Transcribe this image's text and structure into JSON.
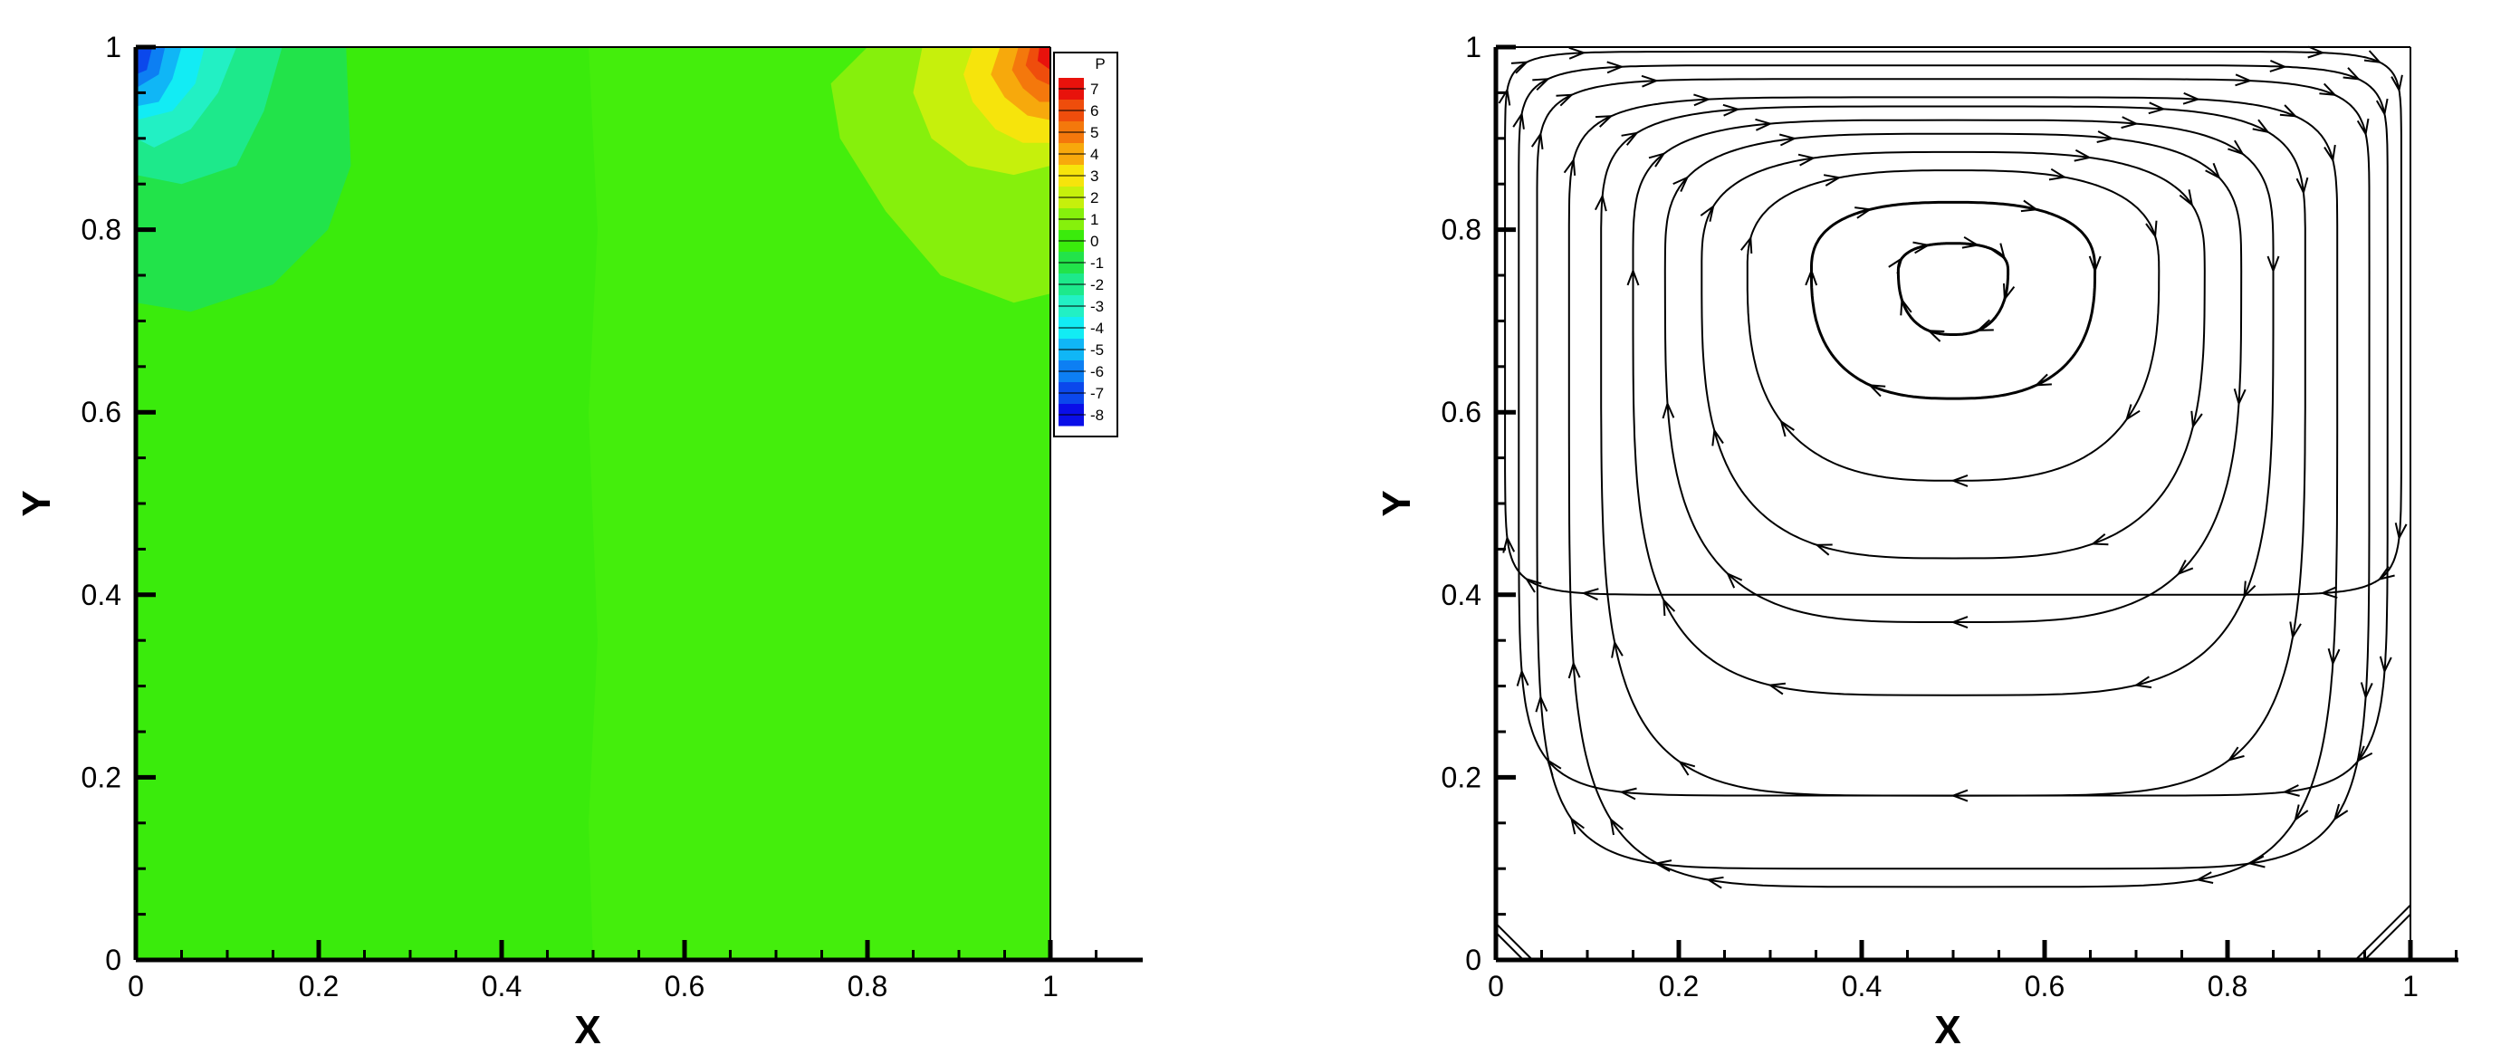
{
  "chart_data": [
    {
      "type": "heatmap",
      "xlabel": "X",
      "ylabel": "Y",
      "xlim": [
        0,
        1
      ],
      "ylim": [
        0,
        1
      ],
      "xticks": [
        "0",
        "0.2",
        "0.4",
        "0.6",
        "0.8",
        "1"
      ],
      "yticks": [
        "0",
        "0.2",
        "0.4",
        "0.6",
        "0.8",
        "1"
      ],
      "grid": false,
      "background_color": "#3aeb0c",
      "legend": {
        "title": "P",
        "placement": "top-right",
        "levels": [
          {
            "label": "7",
            "color": "#e8120c"
          },
          {
            "label": "6",
            "color": "#ef4d0c"
          },
          {
            "label": "5",
            "color": "#f4780c"
          },
          {
            "label": "4",
            "color": "#f7a90c"
          },
          {
            "label": "3",
            "color": "#f6e40c"
          },
          {
            "label": "2",
            "color": "#c6f00c"
          },
          {
            "label": "1",
            "color": "#86f00c"
          },
          {
            "label": "0",
            "color": "#3aeb0c"
          },
          {
            "label": "-1",
            "color": "#22e34a"
          },
          {
            "label": "-2",
            "color": "#1de98b"
          },
          {
            "label": "-3",
            "color": "#22f0c4"
          },
          {
            "label": "-4",
            "color": "#12ecf4"
          },
          {
            "label": "-5",
            "color": "#10b6f6"
          },
          {
            "label": "-6",
            "color": "#0d7ff3"
          },
          {
            "label": "-7",
            "color": "#0b48ec"
          },
          {
            "label": "-8",
            "color": "#0a0ee8"
          }
        ]
      },
      "regions": [
        {
          "level": 1,
          "color": "#44ee0c",
          "points": [
            [
              0.5,
              0
            ],
            [
              1,
              0
            ],
            [
              1,
              1
            ],
            [
              0.495,
              1
            ],
            [
              0.505,
              0.8
            ],
            [
              0.495,
              0.6
            ],
            [
              0.505,
              0.35
            ],
            [
              0.495,
              0.15
            ]
          ]
        },
        {
          "level": -1,
          "color": "#22e34a",
          "points": [
            [
              0,
              1
            ],
            [
              0.23,
              1
            ],
            [
              0.235,
              0.87
            ],
            [
              0.21,
              0.8
            ],
            [
              0.15,
              0.74
            ],
            [
              0.06,
              0.71
            ],
            [
              0,
              0.72
            ]
          ]
        },
        {
          "level": -2,
          "color": "#1de98b",
          "points": [
            [
              0,
              1
            ],
            [
              0.16,
              1
            ],
            [
              0.14,
              0.93
            ],
            [
              0.11,
              0.87
            ],
            [
              0.05,
              0.85
            ],
            [
              0,
              0.86
            ]
          ]
        },
        {
          "level": -3,
          "color": "#22f0c4",
          "points": [
            [
              0,
              1
            ],
            [
              0.11,
              1
            ],
            [
              0.09,
              0.95
            ],
            [
              0.06,
              0.91
            ],
            [
              0.02,
              0.89
            ],
            [
              0,
              0.9
            ]
          ]
        },
        {
          "level": -4,
          "color": "#12ecf4",
          "points": [
            [
              0,
              1
            ],
            [
              0.075,
              1
            ],
            [
              0.065,
              0.96
            ],
            [
              0.04,
              0.93
            ],
            [
              0,
              0.92
            ]
          ]
        },
        {
          "level": -5,
          "color": "#10b6f6",
          "points": [
            [
              0,
              1
            ],
            [
              0.05,
              1
            ],
            [
              0.04,
              0.965
            ],
            [
              0.025,
              0.94
            ],
            [
              0,
              0.935
            ]
          ]
        },
        {
          "level": -6,
          "color": "#0d7ff3",
          "points": [
            [
              0,
              1
            ],
            [
              0.032,
              1
            ],
            [
              0.025,
              0.97
            ],
            [
              0,
              0.955
            ]
          ]
        },
        {
          "level": -7,
          "color": "#0b48ec",
          "points": [
            [
              0,
              1
            ],
            [
              0.018,
              1
            ],
            [
              0.012,
              0.975
            ],
            [
              0,
              0.97
            ]
          ]
        },
        {
          "level": 2,
          "color": "#86f00c",
          "points": [
            [
              1,
              1
            ],
            [
              0.8,
              1
            ],
            [
              0.76,
              0.96
            ],
            [
              0.77,
              0.9
            ],
            [
              0.82,
              0.82
            ],
            [
              0.88,
              0.75
            ],
            [
              0.96,
              0.72
            ],
            [
              1,
              0.73
            ]
          ]
        },
        {
          "level": 3,
          "color": "#c6f00c",
          "points": [
            [
              1,
              1
            ],
            [
              0.86,
              1
            ],
            [
              0.85,
              0.95
            ],
            [
              0.87,
              0.9
            ],
            [
              0.91,
              0.87
            ],
            [
              0.96,
              0.86
            ],
            [
              1,
              0.87
            ]
          ]
        },
        {
          "level": 4,
          "color": "#f6e40c",
          "points": [
            [
              1,
              1
            ],
            [
              0.915,
              1
            ],
            [
              0.905,
              0.97
            ],
            [
              0.915,
              0.94
            ],
            [
              0.94,
              0.91
            ],
            [
              0.97,
              0.895
            ],
            [
              1,
              0.895
            ]
          ]
        },
        {
          "level": 5,
          "color": "#f7a90c",
          "points": [
            [
              1,
              1
            ],
            [
              0.945,
              1
            ],
            [
              0.935,
              0.97
            ],
            [
              0.95,
              0.945
            ],
            [
              0.975,
              0.925
            ],
            [
              1,
              0.92
            ]
          ]
        },
        {
          "level": 6,
          "color": "#f4780c",
          "points": [
            [
              1,
              1
            ],
            [
              0.965,
              1
            ],
            [
              0.958,
              0.975
            ],
            [
              0.97,
              0.955
            ],
            [
              0.988,
              0.94
            ],
            [
              1,
              0.94
            ]
          ]
        },
        {
          "level": 7,
          "color": "#ef4d0c",
          "points": [
            [
              1,
              1
            ],
            [
              0.978,
              1
            ],
            [
              0.973,
              0.98
            ],
            [
              0.985,
              0.965
            ],
            [
              1,
              0.958
            ]
          ]
        },
        {
          "level": 8,
          "color": "#e8120c",
          "points": [
            [
              1,
              1
            ],
            [
              0.988,
              1
            ],
            [
              0.986,
              0.985
            ],
            [
              1,
              0.975
            ]
          ]
        }
      ]
    },
    {
      "type": "streamlines",
      "xlabel": "X",
      "ylabel": "Y",
      "xlim": [
        0,
        1
      ],
      "ylim": [
        0,
        1
      ],
      "xticks": [
        "0",
        "0.2",
        "0.4",
        "0.6",
        "0.8",
        "1"
      ],
      "yticks": [
        "0",
        "0.2",
        "0.4",
        "0.6",
        "0.8",
        "1"
      ],
      "grid": false,
      "vortex_center": [
        0.5,
        0.755
      ],
      "series": [
        {
          "rx": 0.06,
          "yb": 0.685,
          "yt": 0.785,
          "p": 2.4,
          "arrows": 8
        },
        {
          "rx": 0.155,
          "yb": 0.615,
          "yt": 0.83,
          "p": 2.6,
          "arrows": 6
        },
        {
          "rx": 0.225,
          "yb": 0.525,
          "yt": 0.865,
          "p": 2.8,
          "arrows": 7
        },
        {
          "rx": 0.275,
          "yb": 0.44,
          "yt": 0.885,
          "p": 3.2,
          "arrows": 8
        },
        {
          "rx": 0.315,
          "yb": 0.37,
          "yt": 0.905,
          "p": 3.6,
          "arrows": 9
        },
        {
          "rx": 0.35,
          "yb": 0.29,
          "yt": 0.92,
          "p": 4.2,
          "arrows": 10
        },
        {
          "rx": 0.385,
          "yb": 0.18,
          "yt": 0.935,
          "p": 5.0,
          "arrows": 11
        },
        {
          "rx": 0.42,
          "yb": 0.08,
          "yt": 0.945,
          "p": 6.0,
          "arrows": 12
        },
        {
          "rx": 0.455,
          "yb": 0.1,
          "yt": 0.965,
          "p": 8.0,
          "arrows": 12
        },
        {
          "rx": 0.475,
          "yb": 0.18,
          "yt": 0.98,
          "p": 10.0,
          "arrows": 12
        },
        {
          "rx": 0.49,
          "yb": 0.4,
          "yt": 0.995,
          "p": 14.0,
          "arrows": 12
        }
      ]
    }
  ]
}
